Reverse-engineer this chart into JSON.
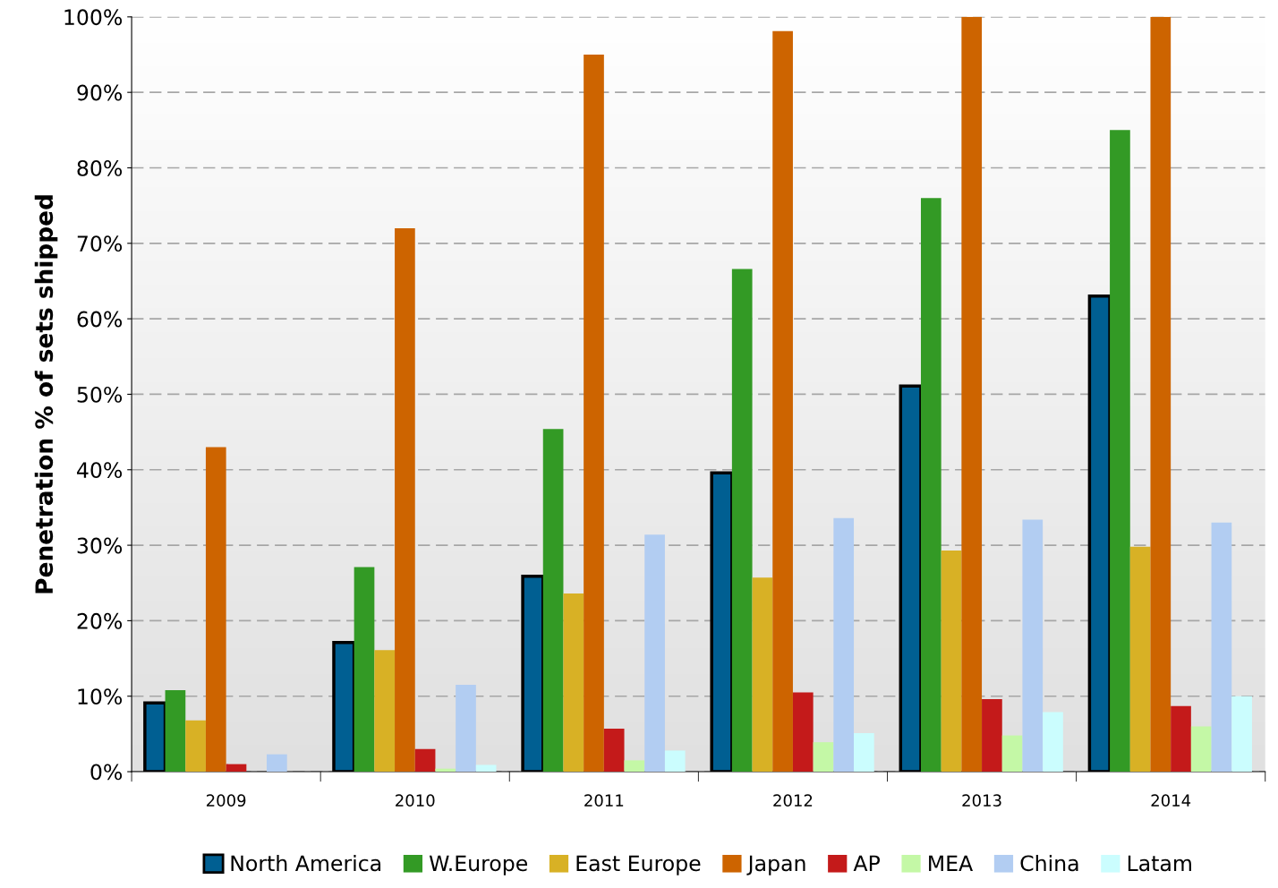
{
  "chart_data": {
    "type": "bar",
    "ylabel": "Penetration % of sets shipped",
    "categories": [
      "2009",
      "2010",
      "2011",
      "2012",
      "2013",
      "2014"
    ],
    "series": [
      {
        "name": "North America",
        "color": "#005f92",
        "values": [
          9.1,
          17.1,
          25.9,
          39.6,
          51.1,
          63.0
        ]
      },
      {
        "name": "W.Europe",
        "color": "#339a25",
        "values": [
          10.8,
          27.1,
          45.4,
          66.6,
          76.0,
          85.0
        ]
      },
      {
        "name": "East Europe",
        "color": "#d8b125",
        "values": [
          6.8,
          16.1,
          23.6,
          25.7,
          29.3,
          29.8
        ]
      },
      {
        "name": "Japan",
        "color": "#cd6400",
        "values": [
          43.0,
          72.0,
          95.0,
          98.1,
          100,
          100
        ]
      },
      {
        "name": "AP",
        "color": "#c41a1a",
        "values": [
          1.0,
          3.0,
          5.7,
          10.5,
          9.6,
          8.7
        ]
      },
      {
        "name": "MEA",
        "color": "#c4f8a6",
        "values": [
          0,
          0.4,
          1.5,
          3.9,
          4.8,
          6.0
        ]
      },
      {
        "name": "China",
        "color": "#b2cdf2",
        "values": [
          2.3,
          11.5,
          31.4,
          33.6,
          33.4,
          33.0
        ]
      },
      {
        "name": "Latam",
        "color": "#cbfdfe",
        "values": [
          0,
          0.9,
          2.8,
          5.1,
          7.9,
          10.0
        ]
      }
    ],
    "ylim": [
      0,
      100
    ],
    "yticks": [
      {
        "value": 0,
        "label": "0%"
      },
      {
        "value": 10,
        "label": "10%"
      },
      {
        "value": 20,
        "label": "20%"
      },
      {
        "value": 30,
        "label": "30%"
      },
      {
        "value": 40,
        "label": "40%"
      },
      {
        "value": 50,
        "label": "50%"
      },
      {
        "value": 60,
        "label": "60%"
      },
      {
        "value": 70,
        "label": "70%"
      },
      {
        "value": 80,
        "label": "80%"
      },
      {
        "value": 90,
        "label": "90%"
      },
      {
        "value": 100,
        "label": "100%"
      }
    ],
    "grid": "y",
    "line_style": "dashed",
    "legend": "bottom"
  }
}
